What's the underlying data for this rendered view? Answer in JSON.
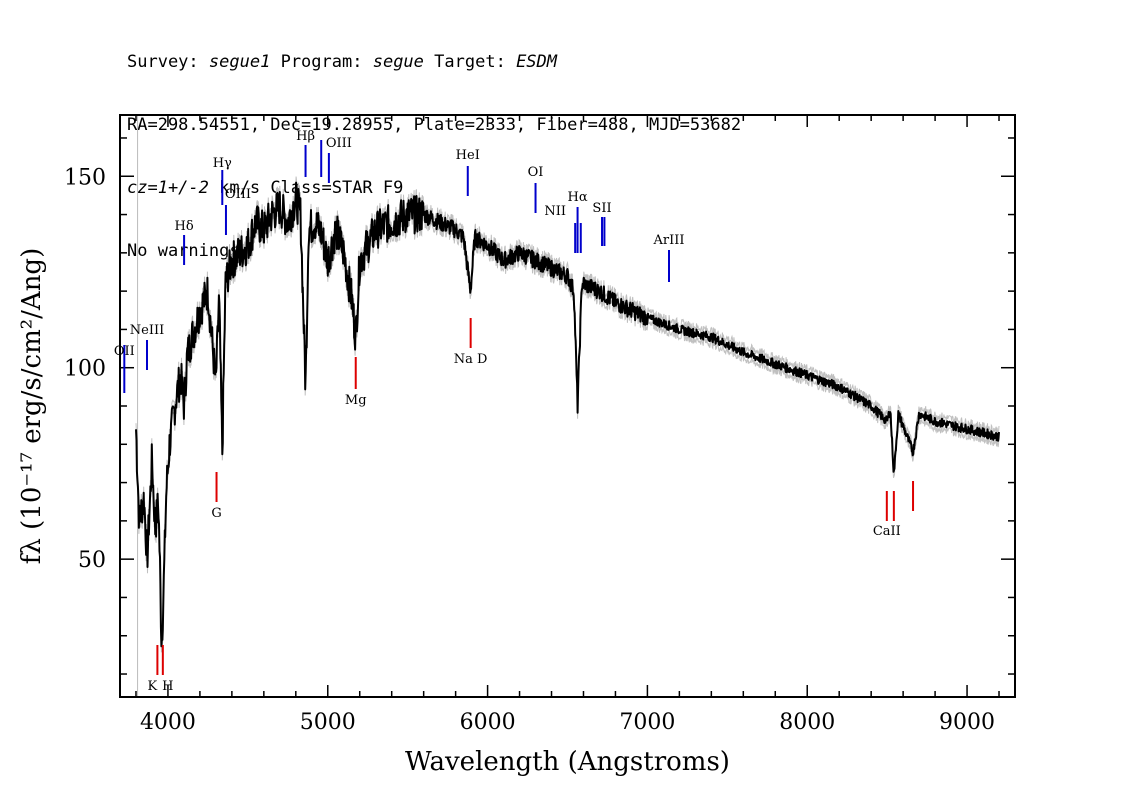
{
  "header": {
    "survey_label": "Survey:",
    "survey_value": "segue1",
    "program_label": "Program:",
    "program_value": "segue",
    "target_label": "Target:",
    "target_value": "ESDM",
    "line2": "RA=298.54551, Dec=19.28955, Plate=2333, Fiber=488, MJD=53682",
    "cz_value": "cz=1+/-2",
    "cz_unit": "km/s Class=STAR F9",
    "warnings": "No warnings."
  },
  "chart_data": {
    "type": "line",
    "xlabel": "Wavelength (Angstroms)",
    "ylabel": "fλ (10⁻¹⁷ erg/s/cm²/Ang)",
    "xlim": [
      3700,
      9300
    ],
    "ylim": [
      14,
      166
    ],
    "x_ticks": [
      4000,
      5000,
      6000,
      7000,
      8000,
      9000
    ],
    "y_ticks": [
      50,
      100,
      150
    ],
    "series_color": "#000000",
    "error_color": "#c0c0c0",
    "blue_color": "#0000cc",
    "red_color": "#dd0000",
    "spectrum": {
      "x": [
        3800,
        3820,
        3850,
        3870,
        3900,
        3920,
        3940,
        3950,
        3960,
        3970,
        3990,
        4010,
        4050,
        4080,
        4101,
        4120,
        4150,
        4200,
        4250,
        4280,
        4300,
        4320,
        4340,
        4360,
        4400,
        4450,
        4500,
        4550,
        4600,
        4650,
        4700,
        4750,
        4800,
        4830,
        4861,
        4880,
        4920,
        4960,
        5000,
        5050,
        5100,
        5150,
        5175,
        5200,
        5250,
        5300,
        5400,
        5500,
        5600,
        5700,
        5800,
        5850,
        5893,
        5920,
        6000,
        6100,
        6200,
        6300,
        6400,
        6500,
        6540,
        6563,
        6590,
        6650,
        6700,
        6800,
        6900,
        7000,
        7200,
        7400,
        7600,
        7800,
        8000,
        8200,
        8400,
        8498,
        8520,
        8542,
        8570,
        8662,
        8700,
        8800,
        9000,
        9100,
        9200
      ],
      "y": [
        84,
        60,
        66,
        50,
        76,
        58,
        65,
        48,
        28,
        38,
        68,
        80,
        92,
        98,
        90,
        103,
        108,
        115,
        120,
        105,
        96,
        118,
        78,
        122,
        128,
        130,
        132,
        138,
        136,
        140,
        142,
        138,
        144,
        140,
        95,
        136,
        138,
        135,
        128,
        136,
        130,
        118,
        108,
        128,
        132,
        136,
        138,
        140,
        140,
        138,
        136,
        134,
        120,
        134,
        132,
        128,
        130,
        128,
        126,
        124,
        120,
        90,
        122,
        121,
        120,
        117,
        115,
        113,
        110,
        108,
        104,
        101,
        98,
        95,
        90,
        86,
        89,
        72,
        88,
        78,
        88,
        86,
        84,
        83,
        82
      ]
    },
    "lines_blue": [
      {
        "label": "OII",
        "wave": 3727
      },
      {
        "label": "NeIII",
        "wave": 3869
      },
      {
        "label": "Hδ",
        "wave": 4101
      },
      {
        "label": "Hγ",
        "wave": 4340
      },
      {
        "label": "OIII",
        "wave": 4363
      },
      {
        "label": "Hβ",
        "wave": 4861
      },
      {
        "label": "OIII",
        "wave": 4959
      },
      {
        "label": "OIII",
        "wave": 5007
      },
      {
        "label": "HeI",
        "wave": 5876
      },
      {
        "label": "OI",
        "wave": 6300
      },
      {
        "label": "NII",
        "wave": 6548
      },
      {
        "label": "Hα",
        "wave": 6563
      },
      {
        "label": "NII",
        "wave": 6583
      },
      {
        "label": "SII",
        "wave": 6716
      },
      {
        "label": "SII",
        "wave": 6731
      },
      {
        "label": "ArIII",
        "wave": 7135
      }
    ],
    "lines_red": [
      {
        "label": "K",
        "wave": 3934
      },
      {
        "label": "H",
        "wave": 3968
      },
      {
        "label": "G",
        "wave": 4304
      },
      {
        "label": "Mg",
        "wave": 5175
      },
      {
        "label": "Na D",
        "wave": 5894
      },
      {
        "label": "CaII",
        "wave": 8498
      },
      {
        "label": "CaII",
        "wave": 8542
      },
      {
        "label": "CaII",
        "wave": 8662
      }
    ]
  }
}
